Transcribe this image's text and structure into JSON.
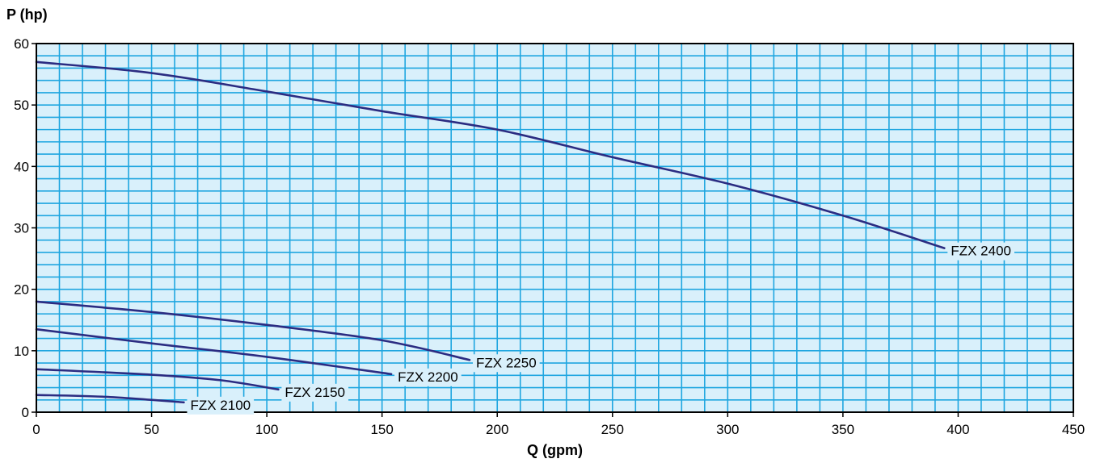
{
  "chart_data": {
    "type": "line",
    "xlabel": "Q (gpm)",
    "ylabel": "P (hp)",
    "xlim": [
      0,
      450
    ],
    "ylim": [
      0,
      60
    ],
    "x_ticks": [
      0,
      50,
      100,
      150,
      200,
      250,
      300,
      350,
      400,
      450
    ],
    "y_ticks": [
      0,
      10,
      20,
      30,
      40,
      50,
      60
    ],
    "grid": true,
    "colors": {
      "background": "#d9f0fb",
      "grid": "#1fa6e0",
      "line": "#2b2c82",
      "frame": "#000000",
      "label_bg": "#d9f0fb"
    },
    "series": [
      {
        "name": "FZX 2400",
        "points": [
          [
            0,
            57
          ],
          [
            50,
            55.2
          ],
          [
            100,
            52.2
          ],
          [
            150,
            49
          ],
          [
            200,
            46
          ],
          [
            250,
            41.5
          ],
          [
            300,
            37.2
          ],
          [
            350,
            32
          ],
          [
            394,
            26.7
          ]
        ]
      },
      {
        "name": "FZX 2250",
        "points": [
          [
            0,
            18
          ],
          [
            50,
            16.3
          ],
          [
            100,
            14.2
          ],
          [
            150,
            11.7
          ],
          [
            188,
            8.5
          ]
        ]
      },
      {
        "name": "FZX 2200",
        "points": [
          [
            0,
            13.5
          ],
          [
            50,
            11.2
          ],
          [
            100,
            9
          ],
          [
            154,
            6.2
          ]
        ]
      },
      {
        "name": "FZX 2150",
        "points": [
          [
            0,
            7
          ],
          [
            50,
            6.1
          ],
          [
            80,
            5.2
          ],
          [
            105,
            3.7
          ]
        ]
      },
      {
        "name": "FZX 2100",
        "points": [
          [
            0,
            2.8
          ],
          [
            30,
            2.5
          ],
          [
            64,
            1.6
          ]
        ]
      }
    ]
  }
}
